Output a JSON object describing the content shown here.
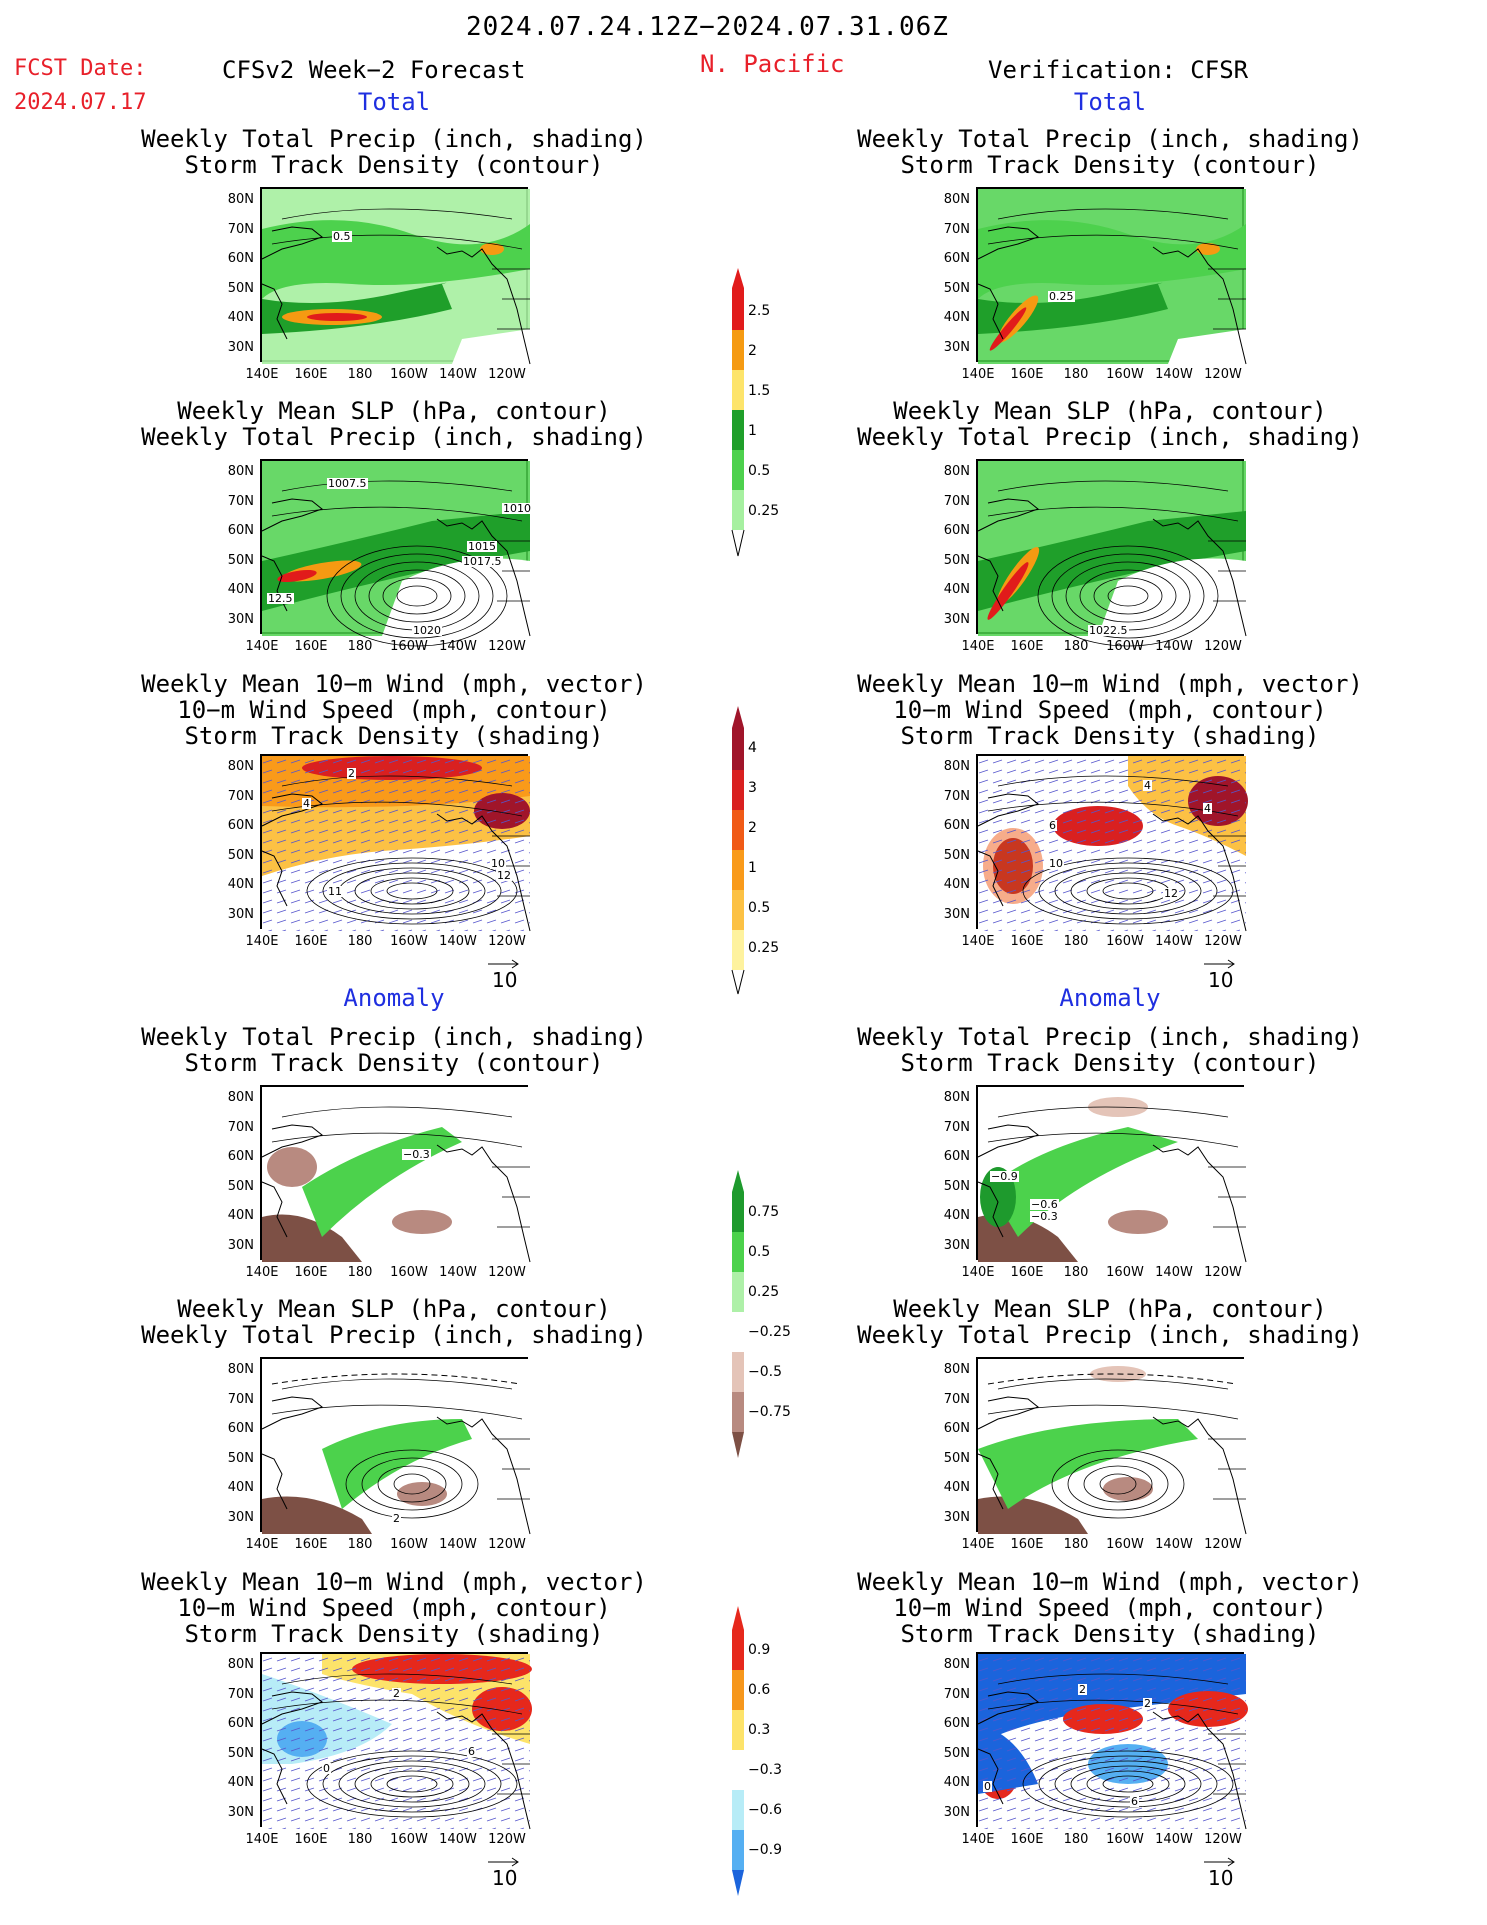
{
  "header": {
    "date_range": "2024.07.24.12Z−2024.07.31.06Z",
    "fcst_label": "FCST Date:",
    "fcst_date": "2024.07.17",
    "left_model": "CFSv2 Week−2 Forecast",
    "region": "N. Pacific",
    "right_verif": "Verification: CFSR"
  },
  "sections": {
    "total": "Total",
    "anomaly": "Anomaly"
  },
  "titles": {
    "precip_storm": [
      "Weekly Total Precip (inch, shading)",
      "Storm Track Density (contour)"
    ],
    "slp_precip": [
      "Weekly Mean SLP (hPa, contour)",
      "Weekly Total Precip (inch, shading)"
    ],
    "wind_storm": [
      "Weekly Mean 10−m Wind (mph, vector)",
      "10−m Wind Speed (mph, contour)",
      "Storm Track Density (shading)"
    ]
  },
  "axes": {
    "lats": [
      "80N",
      "70N",
      "60N",
      "50N",
      "40N",
      "30N"
    ],
    "lons": [
      "140E",
      "160E",
      "180",
      "160W",
      "140W",
      "120W"
    ]
  },
  "vector_ref": "10",
  "contour_labels": {
    "p1": "0.5",
    "p4": "0.25",
    "p2a": "1007.5",
    "p2b": "1010",
    "p2c": "1015",
    "p2d": "1017.5",
    "p2e": "12.5",
    "p2f": "1020",
    "p5": "1022.5",
    "p3a": "2",
    "p3b": "4",
    "p3c": "11",
    "p3d": "10",
    "p3e": "12",
    "p6a": "4",
    "p6b": "4",
    "p6c": "6",
    "p6d": "10",
    "p6e": "12",
    "p7": "−0.3",
    "p10a": "−0.9",
    "p10b": "−0.6",
    "p10c": "−0.3",
    "p8": "2",
    "p9a": "2",
    "p9b": "0",
    "p9c": "6",
    "p12a": "2",
    "p12b": "2",
    "p12c": "0",
    "p12d": "6"
  },
  "colorbars": {
    "precip_total": {
      "labels": [
        "2.5",
        "2",
        "1.5",
        "1",
        "0.5",
        "0.25"
      ],
      "colors": [
        "#e11b1b",
        "#f59a12",
        "#fde46b",
        "#1f9f2a",
        "#4dd14d",
        "#a6f0a0"
      ]
    },
    "storm_total": {
      "labels": [
        "4",
        "3",
        "2",
        "1",
        "0.5",
        "0.25"
      ],
      "colors": [
        "#a0152a",
        "#d92020",
        "#f05a16",
        "#f99a1a",
        "#fcc144",
        "#fef29e"
      ]
    },
    "precip_anom": {
      "labels": [
        "0.75",
        "0.5",
        "0.25",
        "−0.25",
        "−0.5",
        "−0.75"
      ],
      "colors": [
        "#1e9a2d",
        "#4cd24c",
        "#aef0a8",
        "#ffffff",
        "#e4c4b8",
        "#b88a80",
        "#7d5045"
      ]
    },
    "storm_anom": {
      "labels": [
        "0.9",
        "0.6",
        "0.3",
        "−0.3",
        "−0.6",
        "−0.9"
      ],
      "colors": [
        "#e6281c",
        "#f6971c",
        "#fde36a",
        "#ffffff",
        "#b7ecf7",
        "#55aff2",
        "#1b64dc"
      ]
    }
  }
}
